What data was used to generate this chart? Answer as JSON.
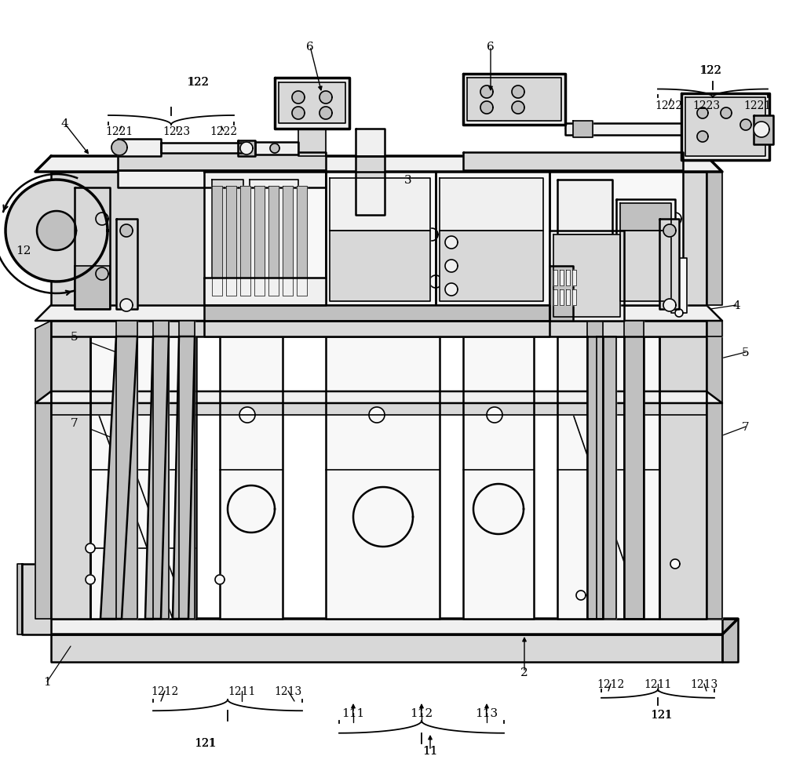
{
  "bg": "#ffffff",
  "annotations": [
    [
      "4",
      82,
      158,
      115,
      200,
      true
    ],
    [
      "4",
      938,
      390,
      905,
      395,
      false
    ],
    [
      "5",
      95,
      430,
      148,
      450,
      false
    ],
    [
      "5",
      950,
      450,
      910,
      460,
      false
    ],
    [
      "6",
      395,
      60,
      410,
      120,
      true
    ],
    [
      "6",
      625,
      60,
      625,
      120,
      true
    ],
    [
      "7",
      95,
      540,
      145,
      560,
      false
    ],
    [
      "7",
      950,
      545,
      910,
      560,
      false
    ],
    [
      "12",
      30,
      320,
      90,
      310,
      false
    ],
    [
      "3",
      520,
      230,
      490,
      275,
      false
    ],
    [
      "2",
      668,
      858,
      668,
      810,
      true
    ],
    [
      "1",
      60,
      870,
      90,
      825,
      false
    ],
    [
      "11",
      548,
      958,
      548,
      935,
      true
    ],
    [
      "111",
      450,
      910,
      450,
      895,
      true
    ],
    [
      "112",
      537,
      910,
      537,
      895,
      true
    ],
    [
      "113",
      620,
      910,
      620,
      895,
      true
    ]
  ],
  "plain_labels": [
    [
      "122",
      252,
      105
    ],
    [
      "1221",
      152,
      168
    ],
    [
      "1223",
      225,
      168
    ],
    [
      "1222",
      285,
      168
    ],
    [
      "122",
      905,
      90
    ],
    [
      "1222",
      852,
      135
    ],
    [
      "1223",
      900,
      135
    ],
    [
      "1221",
      965,
      135
    ],
    [
      "121",
      262,
      948
    ],
    [
      "1212",
      210,
      882
    ],
    [
      "1211",
      308,
      882
    ],
    [
      "1213",
      367,
      882
    ],
    [
      "121",
      843,
      912
    ],
    [
      "1212",
      778,
      873
    ],
    [
      "1211",
      838,
      873
    ],
    [
      "1213",
      897,
      873
    ]
  ]
}
